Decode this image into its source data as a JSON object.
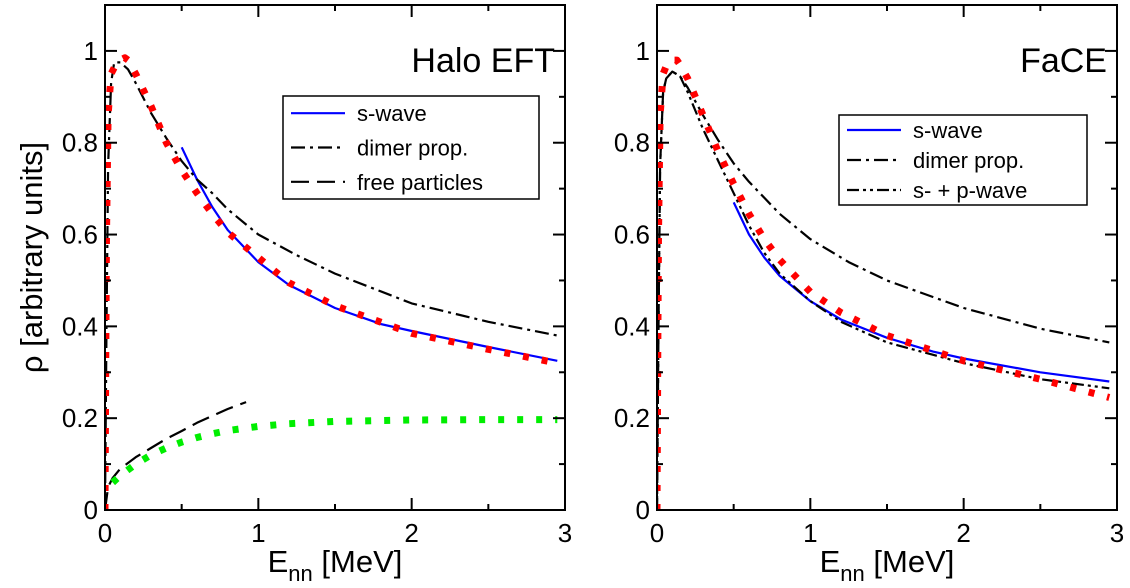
{
  "chart_data": [
    {
      "type": "line",
      "title": "Halo EFT",
      "xlabel": "E",
      "xlabel_sub": "nn",
      "xlabel_unit": " [MeV]",
      "ylabel": "ρ [arbitrary units]",
      "xlim": [
        0,
        3
      ],
      "ylim": [
        0,
        1.1
      ],
      "xticks": [
        0,
        1,
        2,
        3
      ],
      "xtick_labels": [
        "0",
        "1",
        "2",
        "3"
      ],
      "yticks": [
        0,
        0.2,
        0.4,
        0.6,
        0.8,
        1
      ],
      "ytick_labels": [
        "0",
        "0.2",
        "0.4",
        "0.6",
        "0.8",
        "1"
      ],
      "grid": false,
      "legend_position": "top-right",
      "legend": [
        "s-wave",
        "dimer prop.",
        "free particles"
      ],
      "series": [
        {
          "name": "s-wave",
          "color": "#0000ff",
          "style": "solid",
          "x": [
            0.5,
            0.6,
            0.7,
            0.8,
            1.0,
            1.2,
            1.5,
            1.8,
            2.0,
            2.5,
            2.95
          ],
          "y": [
            0.79,
            0.72,
            0.66,
            0.61,
            0.54,
            0.49,
            0.44,
            0.405,
            0.39,
            0.355,
            0.325
          ]
        },
        {
          "name": "dimer prop.",
          "color": "#000000",
          "style": "dashdot",
          "x": [
            0,
            0.01,
            0.02,
            0.04,
            0.06,
            0.1,
            0.15,
            0.2,
            0.3,
            0.4,
            0.5,
            0.6,
            0.7,
            0.8,
            1.0,
            1.25,
            1.5,
            2.0,
            2.5,
            2.95
          ],
          "y": [
            0,
            0.4,
            0.75,
            0.93,
            0.975,
            0.975,
            0.96,
            0.93,
            0.865,
            0.81,
            0.76,
            0.72,
            0.69,
            0.655,
            0.6,
            0.555,
            0.515,
            0.45,
            0.41,
            0.38
          ]
        },
        {
          "name": "free particles",
          "color": "#000000",
          "style": "dashed",
          "x": [
            0,
            0.02,
            0.05,
            0.1,
            0.2,
            0.3,
            0.4,
            0.5,
            0.6,
            0.7,
            0.8,
            0.92
          ],
          "y": [
            0.0,
            0.05,
            0.07,
            0.09,
            0.115,
            0.135,
            0.155,
            0.172,
            0.19,
            0.205,
            0.22,
            0.235
          ]
        },
        {
          "color": "#ff0000",
          "style": "dotted",
          "x": [
            0,
            0.005,
            0.01,
            0.02,
            0.04,
            0.07,
            0.1,
            0.13,
            0.15,
            0.2,
            0.3,
            0.4,
            0.5,
            0.6,
            0.7,
            0.8,
            1.0,
            1.2,
            1.5,
            2.0,
            2.5,
            2.95
          ],
          "y": [
            0,
            0.35,
            0.6,
            0.86,
            0.95,
            0.97,
            0.98,
            0.985,
            0.98,
            0.95,
            0.88,
            0.8,
            0.74,
            0.69,
            0.645,
            0.605,
            0.55,
            0.495,
            0.445,
            0.385,
            0.35,
            0.32
          ]
        },
        {
          "color": "#00ee00",
          "style": "dotted",
          "x": [
            0.05,
            0.1,
            0.2,
            0.3,
            0.4,
            0.5,
            0.6,
            0.7,
            0.8,
            1.0,
            1.2,
            1.5,
            2.0,
            2.5,
            2.95
          ],
          "y": [
            0.06,
            0.075,
            0.1,
            0.12,
            0.135,
            0.148,
            0.158,
            0.166,
            0.173,
            0.182,
            0.188,
            0.193,
            0.196,
            0.197,
            0.197
          ]
        }
      ]
    },
    {
      "type": "line",
      "title": "FaCE",
      "xlabel": "E",
      "xlabel_sub": "nn",
      "xlabel_unit": " [MeV]",
      "ylabel": "",
      "xlim": [
        0,
        3
      ],
      "ylim": [
        0,
        1.1
      ],
      "xticks": [
        0,
        1,
        2,
        3
      ],
      "xtick_labels": [
        "0",
        "1",
        "2",
        "3"
      ],
      "yticks": [
        0,
        0.2,
        0.4,
        0.6,
        0.8,
        1
      ],
      "ytick_labels": [
        "0",
        "0.2",
        "0.4",
        "0.6",
        "0.8",
        "1"
      ],
      "grid": false,
      "legend_position": "top-right",
      "legend": [
        "s-wave",
        "dimer prop.",
        "s- + p-wave"
      ],
      "series": [
        {
          "name": "s-wave",
          "color": "#0000ff",
          "style": "solid",
          "x": [
            0.5,
            0.6,
            0.7,
            0.8,
            1.0,
            1.2,
            1.5,
            1.8,
            2.0,
            2.5,
            2.95
          ],
          "y": [
            0.67,
            0.6,
            0.55,
            0.51,
            0.455,
            0.415,
            0.375,
            0.345,
            0.33,
            0.3,
            0.28
          ]
        },
        {
          "name": "dimer prop.",
          "color": "#000000",
          "style": "dashdot",
          "x": [
            0,
            0.01,
            0.02,
            0.04,
            0.06,
            0.1,
            0.15,
            0.2,
            0.3,
            0.4,
            0.5,
            0.6,
            0.7,
            0.8,
            1.0,
            1.25,
            1.5,
            2.0,
            2.5,
            2.95
          ],
          "y": [
            0,
            0.4,
            0.75,
            0.91,
            0.94,
            0.955,
            0.945,
            0.92,
            0.86,
            0.805,
            0.755,
            0.715,
            0.68,
            0.645,
            0.59,
            0.54,
            0.5,
            0.44,
            0.395,
            0.365
          ]
        },
        {
          "name": "s- + p-wave",
          "color": "#000000",
          "style": "dashdotdot",
          "x": [
            0,
            0.01,
            0.02,
            0.04,
            0.06,
            0.1,
            0.15,
            0.2,
            0.3,
            0.4,
            0.5,
            0.6,
            0.7,
            0.8,
            1.0,
            1.2,
            1.5,
            2.0,
            2.5,
            2.95
          ],
          "y": [
            0,
            0.4,
            0.75,
            0.91,
            0.94,
            0.955,
            0.945,
            0.91,
            0.83,
            0.76,
            0.69,
            0.62,
            0.56,
            0.515,
            0.455,
            0.41,
            0.365,
            0.32,
            0.285,
            0.265
          ]
        },
        {
          "color": "#ff0000",
          "style": "dotted",
          "x": [
            0,
            0.005,
            0.01,
            0.02,
            0.04,
            0.07,
            0.1,
            0.13,
            0.15,
            0.2,
            0.3,
            0.4,
            0.5,
            0.6,
            0.7,
            0.8,
            1.0,
            1.2,
            1.5,
            2.0,
            2.5,
            2.95
          ],
          "y": [
            0,
            0.35,
            0.6,
            0.86,
            0.95,
            0.975,
            0.98,
            0.98,
            0.97,
            0.94,
            0.86,
            0.78,
            0.71,
            0.645,
            0.59,
            0.545,
            0.475,
            0.43,
            0.38,
            0.325,
            0.285,
            0.245
          ]
        }
      ]
    }
  ]
}
